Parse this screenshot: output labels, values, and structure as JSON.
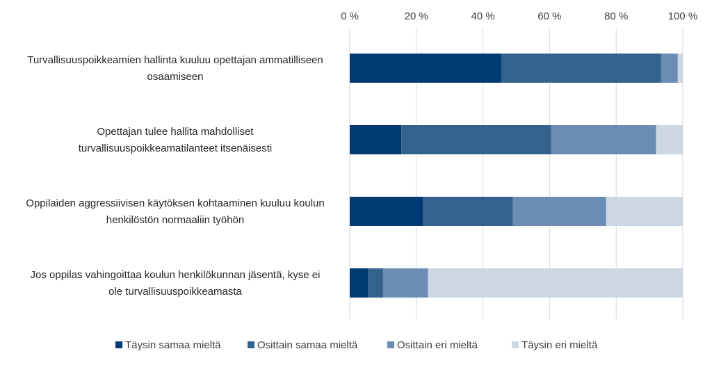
{
  "chart_data": {
    "type": "bar",
    "orientation": "horizontal",
    "stacked": true,
    "percent_stacked": true,
    "title": "",
    "xlabel": "",
    "ylabel": "",
    "xlim": [
      0,
      100
    ],
    "x_ticks": [
      "0 %",
      "20 %",
      "40 %",
      "60 %",
      "80 %",
      "100 %"
    ],
    "x_axis_position": "top",
    "grid": true,
    "legend_position": "bottom",
    "categories": [
      [
        "Turvallisuuspoikkeamien hallinta kuuluu opettajan ammatilliseen",
        "osaamiseen"
      ],
      [
        "Opettajan tulee hallita mahdolliset",
        "turvallisuuspoikkeamatilanteet itsenäisesti"
      ],
      [
        "Oppilaiden aggressiivisen käytöksen kohtaaminen kuuluu koulun",
        "henkilöstön normaaliin työhön"
      ],
      [
        "Jos oppilas vahingoittaa koulun henkilökunnan jäsentä, kyse ei",
        "ole turvallisuuspoikkeamasta"
      ]
    ],
    "series": [
      {
        "name": "Täysin samaa mieltä",
        "color": "#003a73",
        "values": [
          45.5,
          15.5,
          22,
          5.5
        ]
      },
      {
        "name": "Osittain samaa mieltä",
        "color": "#33628c",
        "values": [
          48,
          45,
          27,
          4.5
        ]
      },
      {
        "name": "Osittain eri mieltä",
        "color": "#6b8db5",
        "values": [
          5,
          31.5,
          28,
          13.5
        ]
      },
      {
        "name": "Täysin eri mieltä",
        "color": "#ccd7e3",
        "values": [
          1.5,
          8,
          23,
          76.5
        ]
      }
    ]
  }
}
